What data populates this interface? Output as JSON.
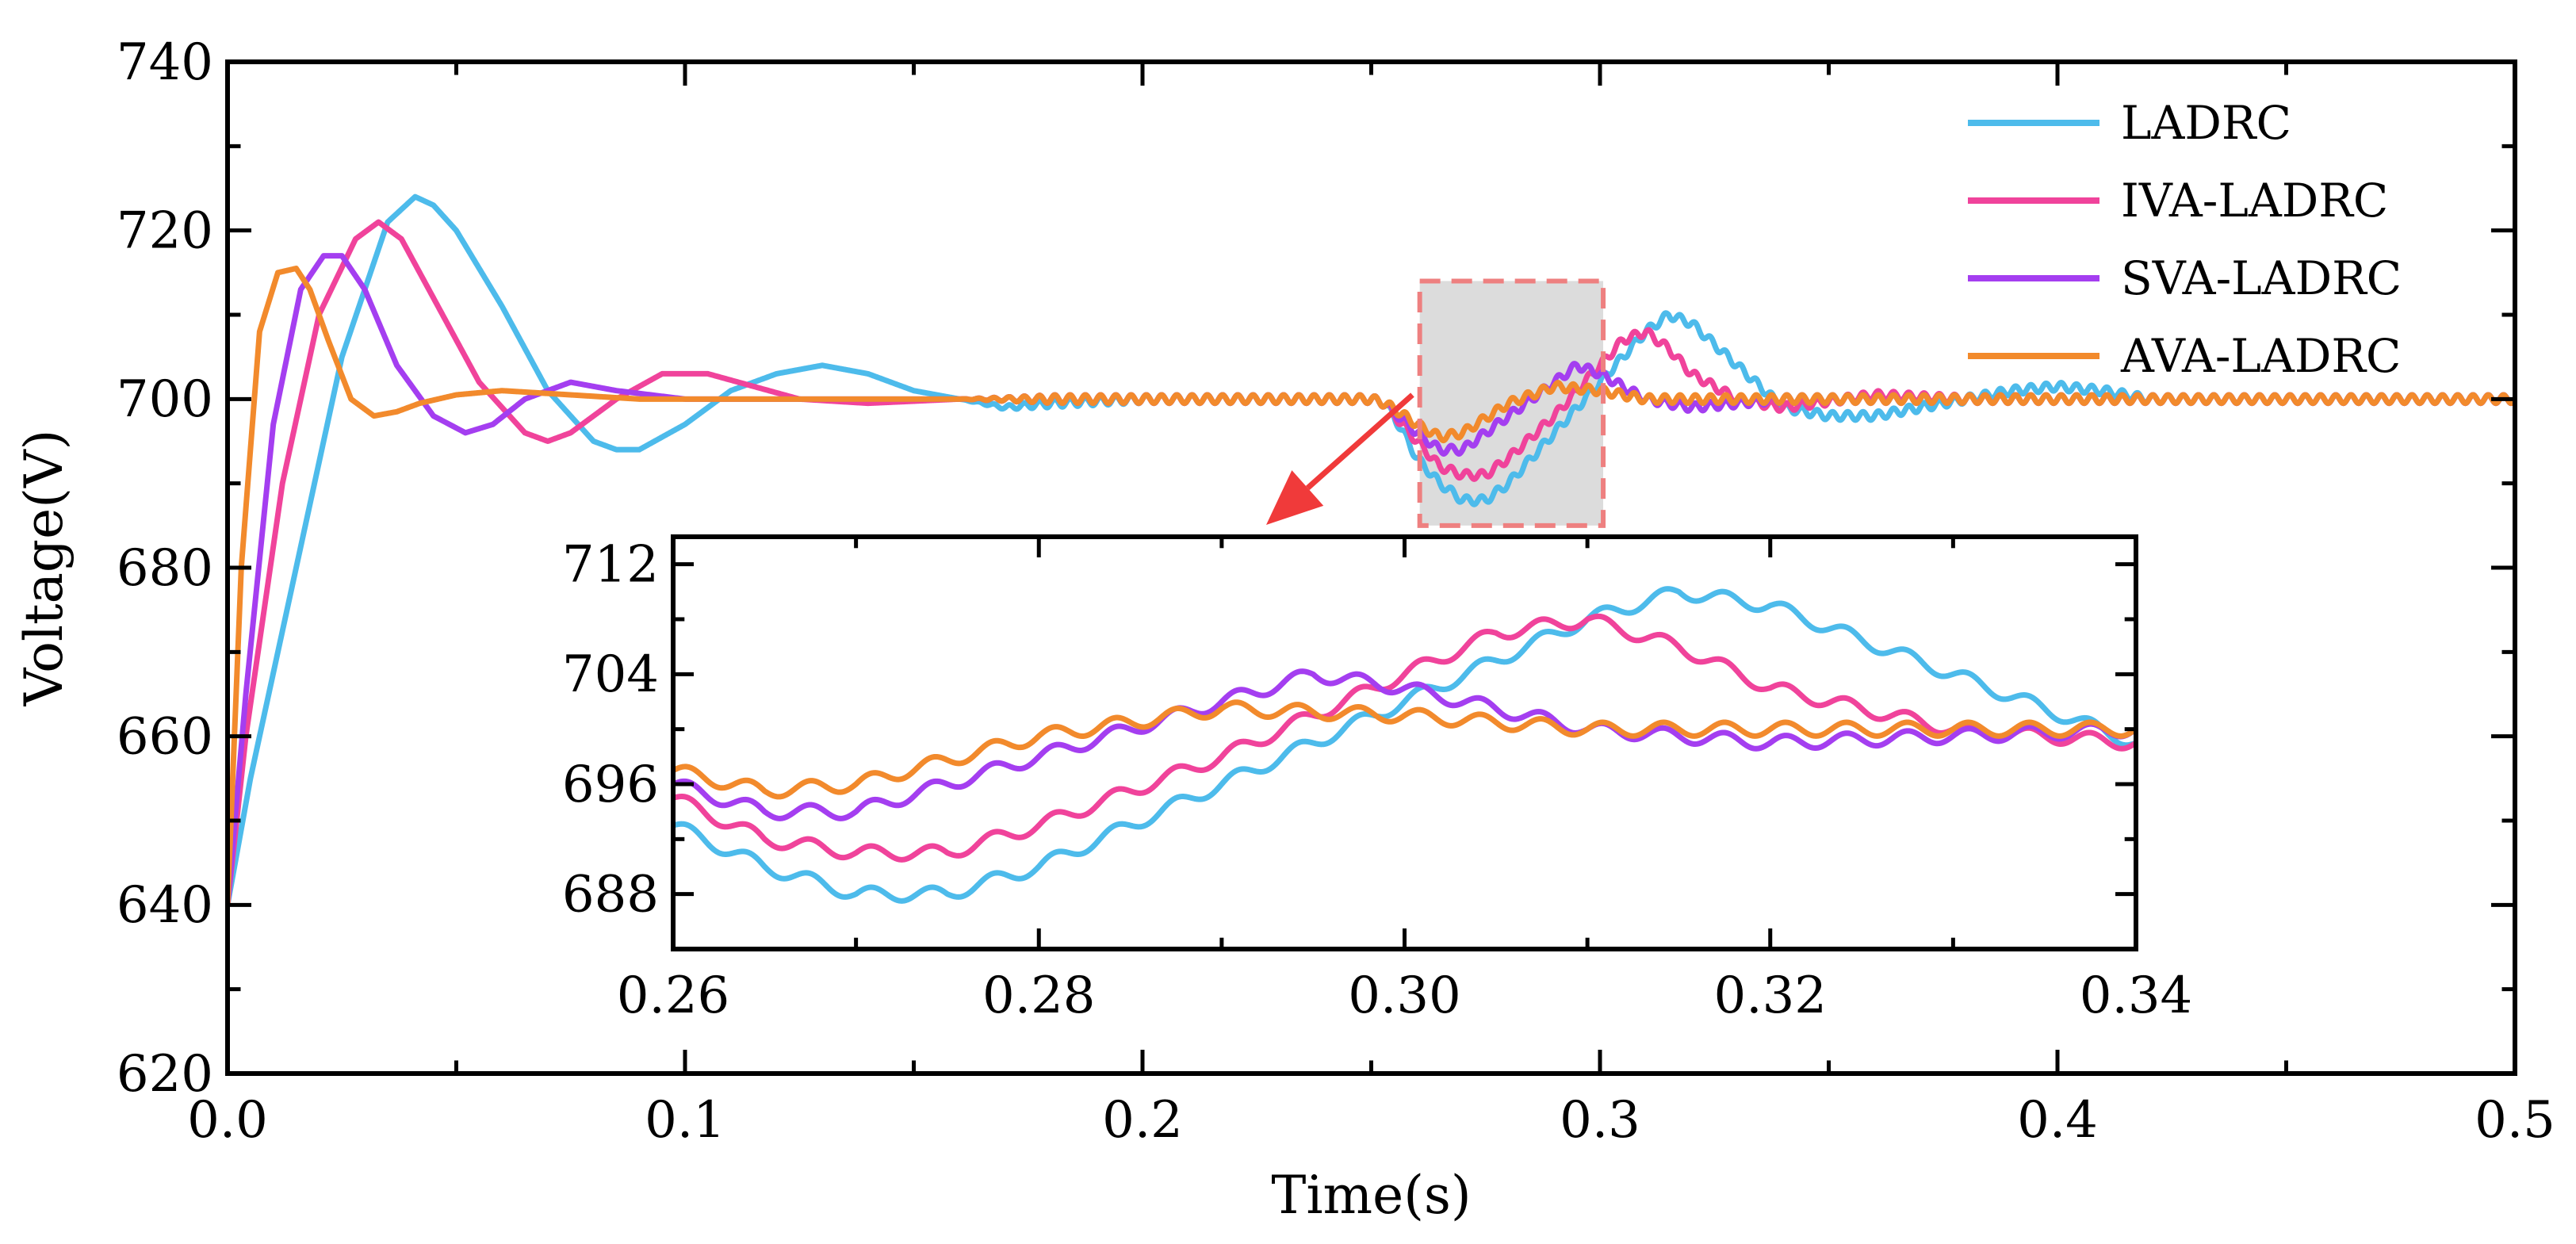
{
  "chart_data": [
    {
      "type": "line",
      "role": "main",
      "title": "",
      "xlabel": "Time(s)",
      "ylabel": "Voltage(V)",
      "xlim": [
        0.0,
        0.5
      ],
      "ylim": [
        620,
        740
      ],
      "xticks": [
        0.0,
        0.1,
        0.2,
        0.3,
        0.4,
        0.5
      ],
      "xtick_labels": [
        "0.0",
        "0.1",
        "0.2",
        "0.3",
        "0.4",
        "0.5"
      ],
      "yticks": [
        620,
        640,
        660,
        680,
        700,
        720,
        740
      ],
      "ytick_labels": [
        "620",
        "640",
        "660",
        "680",
        "700",
        "720",
        "740"
      ],
      "legend_position": "top-right",
      "series": [
        {
          "name": "LADRC",
          "color": "#4DBBEB",
          "x": [
            0.0,
            0.005,
            0.015,
            0.025,
            0.035,
            0.041,
            0.045,
            0.05,
            0.06,
            0.07,
            0.08,
            0.085,
            0.09,
            0.1,
            0.11,
            0.12,
            0.13,
            0.14,
            0.15,
            0.16,
            0.17,
            0.18,
            0.2,
            0.25,
            0.253,
            0.256,
            0.26,
            0.265,
            0.27,
            0.275,
            0.28,
            0.29,
            0.3,
            0.31,
            0.315,
            0.32,
            0.33,
            0.34,
            0.35,
            0.36,
            0.37,
            0.38,
            0.39,
            0.4,
            0.41,
            0.42,
            0.44,
            0.5
          ],
          "y": [
            640,
            655,
            680,
            705,
            721,
            724,
            723,
            720,
            711,
            701,
            695,
            694,
            694,
            697,
            701,
            703,
            704,
            703,
            701,
            700,
            699,
            699.5,
            700,
            700,
            699.5,
            697,
            693,
            690,
            688,
            688,
            690,
            696,
            702,
            708,
            710,
            709,
            704,
            699,
            698,
            698,
            699,
            700,
            701,
            701.5,
            701,
            700,
            700,
            700
          ]
        },
        {
          "name": "IVA-LADRC",
          "color": "#F0439B",
          "x": [
            0.0,
            0.004,
            0.012,
            0.02,
            0.028,
            0.033,
            0.038,
            0.045,
            0.055,
            0.065,
            0.07,
            0.075,
            0.085,
            0.095,
            0.105,
            0.115,
            0.125,
            0.14,
            0.16,
            0.25,
            0.253,
            0.256,
            0.26,
            0.265,
            0.27,
            0.275,
            0.28,
            0.29,
            0.3,
            0.305,
            0.31,
            0.315,
            0.32,
            0.33,
            0.34,
            0.36,
            0.38,
            0.5
          ],
          "y": [
            640,
            660,
            690,
            710,
            719,
            721,
            719,
            712,
            702,
            696,
            695,
            696,
            700,
            703,
            703,
            701.5,
            700,
            699.5,
            700,
            700,
            699.5,
            697.5,
            695,
            692,
            691,
            691,
            693,
            698,
            704,
            707,
            708,
            706,
            703,
            700,
            699,
            700.5,
            700,
            700
          ]
        },
        {
          "name": "SVA-LADRC",
          "color": "#A43EF0",
          "x": [
            0.0,
            0.004,
            0.01,
            0.016,
            0.021,
            0.025,
            0.03,
            0.037,
            0.045,
            0.052,
            0.058,
            0.065,
            0.075,
            0.085,
            0.1,
            0.12,
            0.25,
            0.253,
            0.256,
            0.26,
            0.265,
            0.27,
            0.28,
            0.29,
            0.295,
            0.3,
            0.31,
            0.32,
            0.33,
            0.34,
            0.35,
            0.5
          ],
          "y": [
            640,
            665,
            697,
            713,
            717,
            717,
            713,
            704,
            698,
            696,
            697,
            700,
            702,
            701,
            700,
            700,
            700,
            699.5,
            698,
            696,
            694,
            694,
            698,
            702,
            704,
            703,
            700,
            699,
            699.5,
            700,
            700,
            700
          ]
        },
        {
          "name": "AVA-LADRC",
          "color": "#F28A2C",
          "x": [
            0.0,
            0.003,
            0.007,
            0.011,
            0.015,
            0.018,
            0.022,
            0.027,
            0.032,
            0.037,
            0.042,
            0.05,
            0.06,
            0.075,
            0.09,
            0.11,
            0.25,
            0.253,
            0.256,
            0.26,
            0.265,
            0.27,
            0.28,
            0.29,
            0.3,
            0.31,
            0.32,
            0.5
          ],
          "y": [
            640,
            680,
            708,
            715,
            715.5,
            713,
            707,
            700,
            698,
            698.5,
            699.5,
            700.5,
            701,
            700.5,
            700,
            700,
            700,
            699.5,
            698.5,
            697,
            695.5,
            696,
            699.5,
            701.5,
            701,
            700,
            700,
            700
          ]
        }
      ],
      "ripple": {
        "frequency_hz": 300,
        "amplitude_v": 0.5,
        "start_s": 0.16
      }
    },
    {
      "type": "line",
      "role": "inset",
      "xlim": [
        0.26,
        0.34
      ],
      "ylim": [
        684,
        714
      ],
      "xticks": [
        0.26,
        0.28,
        0.3,
        0.32,
        0.34
      ],
      "xtick_labels": [
        "0.26",
        "0.28",
        "0.30",
        "0.32",
        "0.34"
      ],
      "yticks": [
        688,
        696,
        704,
        712
      ],
      "ytick_labels": [
        "688",
        "696",
        "704",
        "712"
      ],
      "highlight_box": {
        "x": [
          0.2606,
          0.3007
        ],
        "y": [
          685,
          714
        ]
      }
    }
  ]
}
